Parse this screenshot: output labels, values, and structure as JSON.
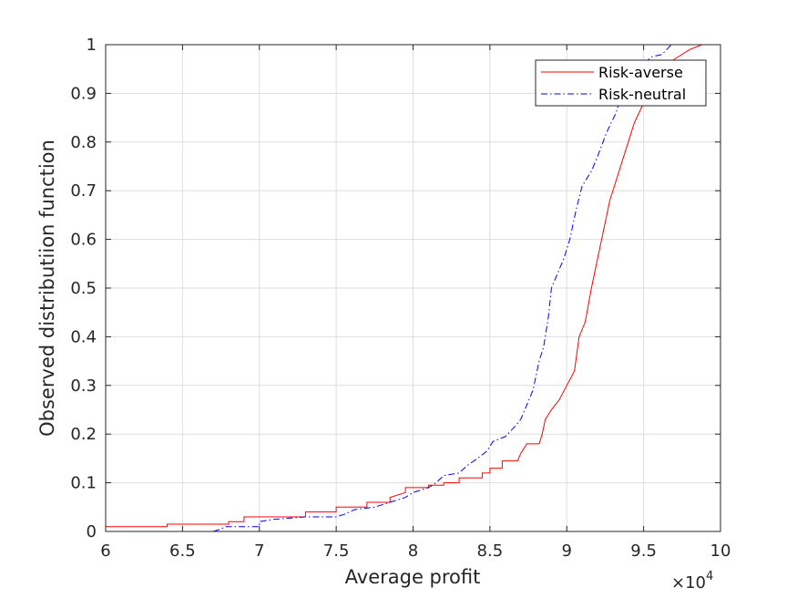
{
  "chart_data": {
    "type": "line",
    "title": "",
    "xlabel": "Average profit",
    "ylabel": "Observed distributiion function",
    "x_multiplier_base": "×10",
    "x_multiplier_exp": "4",
    "xlim": [
      6,
      10
    ],
    "ylim": [
      0,
      1
    ],
    "xticks": [
      "6",
      "6.5",
      "7",
      "7.5",
      "8",
      "8.5",
      "9",
      "9.5",
      "10"
    ],
    "yticks": [
      "0",
      "0.1",
      "0.2",
      "0.3",
      "0.4",
      "0.5",
      "0.6",
      "0.7",
      "0.8",
      "0.9",
      "1"
    ],
    "grid": true,
    "legend_position": "top-right",
    "series": [
      {
        "name": "Risk-averse",
        "color": "#ff0000",
        "style": "solid",
        "points": [
          [
            6.0,
            0.01
          ],
          [
            6.4,
            0.01
          ],
          [
            6.4,
            0.015
          ],
          [
            6.8,
            0.015
          ],
          [
            6.8,
            0.02
          ],
          [
            6.9,
            0.02
          ],
          [
            6.9,
            0.03
          ],
          [
            7.3,
            0.03
          ],
          [
            7.3,
            0.04
          ],
          [
            7.5,
            0.04
          ],
          [
            7.5,
            0.05
          ],
          [
            7.7,
            0.05
          ],
          [
            7.7,
            0.06
          ],
          [
            7.85,
            0.06
          ],
          [
            7.85,
            0.07
          ],
          [
            7.95,
            0.08
          ],
          [
            7.95,
            0.09
          ],
          [
            8.1,
            0.09
          ],
          [
            8.1,
            0.095
          ],
          [
            8.2,
            0.095
          ],
          [
            8.2,
            0.1
          ],
          [
            8.3,
            0.1
          ],
          [
            8.3,
            0.11
          ],
          [
            8.45,
            0.11
          ],
          [
            8.45,
            0.12
          ],
          [
            8.5,
            0.12
          ],
          [
            8.5,
            0.13
          ],
          [
            8.58,
            0.13
          ],
          [
            8.58,
            0.145
          ],
          [
            8.68,
            0.145
          ],
          [
            8.7,
            0.16
          ],
          [
            8.72,
            0.17
          ],
          [
            8.74,
            0.18
          ],
          [
            8.82,
            0.18
          ],
          [
            8.84,
            0.2
          ],
          [
            8.86,
            0.23
          ],
          [
            8.9,
            0.25
          ],
          [
            8.95,
            0.27
          ],
          [
            9.0,
            0.3
          ],
          [
            9.05,
            0.33
          ],
          [
            9.08,
            0.4
          ],
          [
            9.12,
            0.43
          ],
          [
            9.16,
            0.5
          ],
          [
            9.2,
            0.56
          ],
          [
            9.24,
            0.62
          ],
          [
            9.28,
            0.68
          ],
          [
            9.32,
            0.72
          ],
          [
            9.36,
            0.76
          ],
          [
            9.4,
            0.8
          ],
          [
            9.44,
            0.84
          ],
          [
            9.5,
            0.88
          ],
          [
            9.56,
            0.92
          ],
          [
            9.62,
            0.95
          ],
          [
            9.7,
            0.97
          ],
          [
            9.8,
            0.99
          ],
          [
            9.88,
            1.0
          ]
        ]
      },
      {
        "name": "Risk-neutral",
        "color": "#0000ff",
        "style": "dashdot",
        "points": [
          [
            6.7,
            0.0
          ],
          [
            6.75,
            0.005
          ],
          [
            6.78,
            0.01
          ],
          [
            7.0,
            0.01
          ],
          [
            7.0,
            0.02
          ],
          [
            7.1,
            0.025
          ],
          [
            7.3,
            0.03
          ],
          [
            7.5,
            0.03
          ],
          [
            7.55,
            0.035
          ],
          [
            7.62,
            0.045
          ],
          [
            7.75,
            0.05
          ],
          [
            7.85,
            0.06
          ],
          [
            7.95,
            0.07
          ],
          [
            8.0,
            0.08
          ],
          [
            8.1,
            0.09
          ],
          [
            8.15,
            0.1
          ],
          [
            8.2,
            0.115
          ],
          [
            8.3,
            0.12
          ],
          [
            8.35,
            0.135
          ],
          [
            8.42,
            0.15
          ],
          [
            8.48,
            0.165
          ],
          [
            8.52,
            0.185
          ],
          [
            8.6,
            0.195
          ],
          [
            8.66,
            0.215
          ],
          [
            8.7,
            0.23
          ],
          [
            8.74,
            0.26
          ],
          [
            8.78,
            0.29
          ],
          [
            8.8,
            0.32
          ],
          [
            8.82,
            0.35
          ],
          [
            8.85,
            0.38
          ],
          [
            8.88,
            0.44
          ],
          [
            8.9,
            0.5
          ],
          [
            8.94,
            0.53
          ],
          [
            8.98,
            0.56
          ],
          [
            9.02,
            0.6
          ],
          [
            9.06,
            0.66
          ],
          [
            9.1,
            0.71
          ],
          [
            9.16,
            0.74
          ],
          [
            9.2,
            0.77
          ],
          [
            9.26,
            0.82
          ],
          [
            9.32,
            0.86
          ],
          [
            9.36,
            0.9
          ],
          [
            9.42,
            0.93
          ],
          [
            9.5,
            0.96
          ],
          [
            9.55,
            0.975
          ],
          [
            9.62,
            0.98
          ],
          [
            9.68,
            1.0
          ]
        ]
      }
    ]
  }
}
